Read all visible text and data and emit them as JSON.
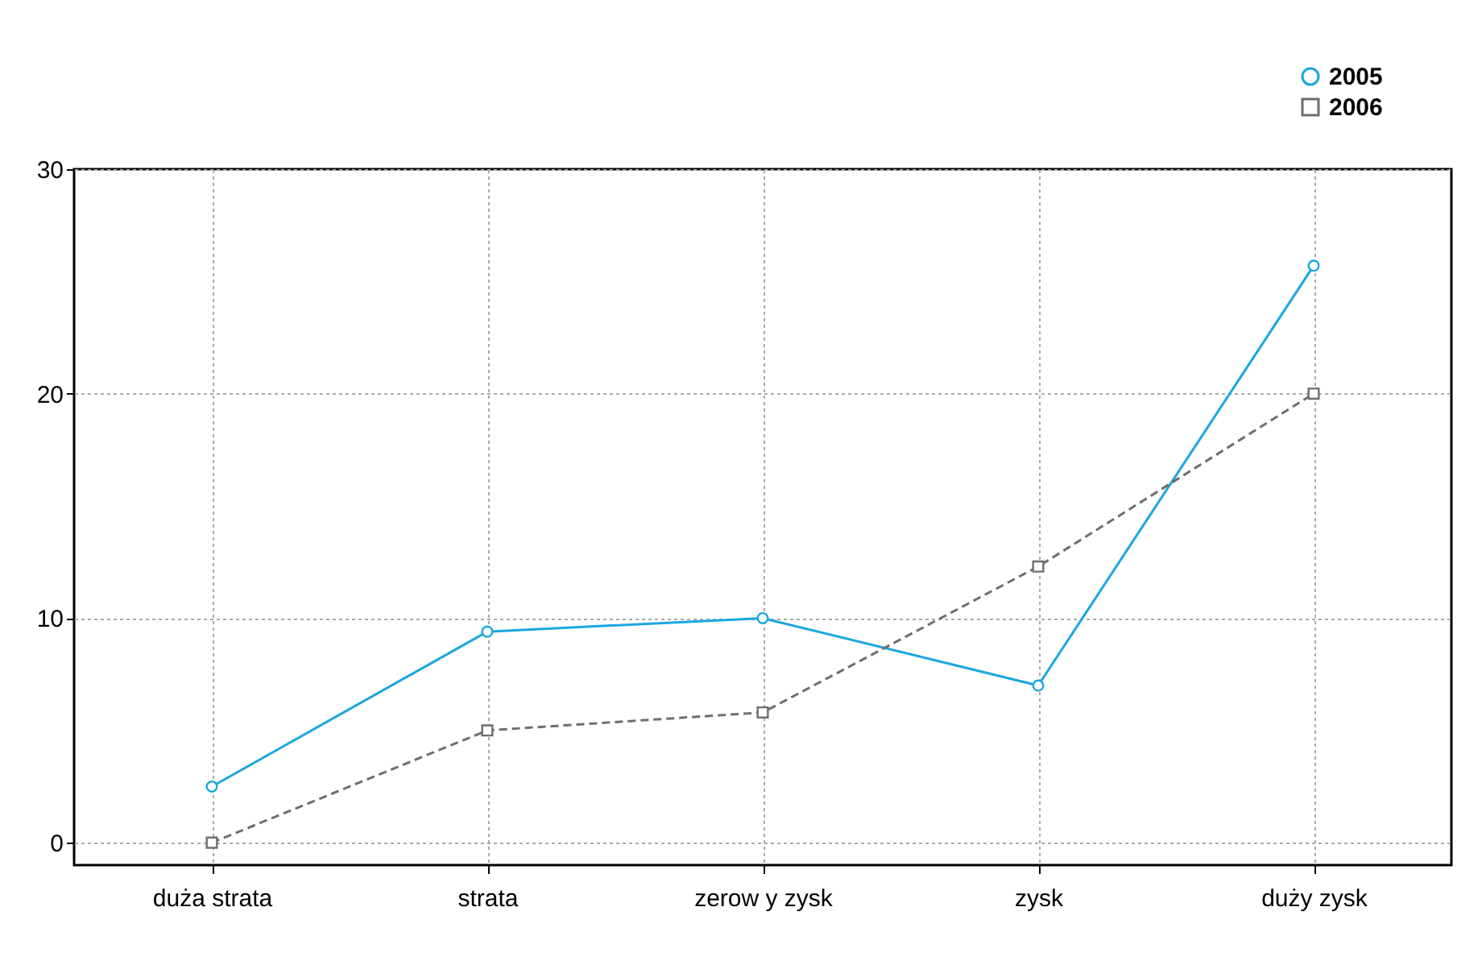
{
  "chart_data": {
    "type": "line",
    "categories": [
      "duża strata",
      "strata",
      "zerow y zysk",
      "zysk",
      "duży zysk"
    ],
    "series": [
      {
        "name": "2005",
        "color": "#1aa7df",
        "values": [
          2.5,
          9.4,
          10.0,
          7.0,
          25.7
        ],
        "marker": "circle",
        "line_style": "solid"
      },
      {
        "name": "2006",
        "color": "#6e6e6e",
        "values": [
          0.0,
          5.0,
          5.8,
          12.3,
          20.0
        ],
        "marker": "square",
        "line_style": "dashed"
      }
    ],
    "ylim": [
      -1,
      30
    ],
    "yticks": [
      0,
      10,
      20,
      30
    ],
    "grid": true,
    "legend": "top right"
  }
}
